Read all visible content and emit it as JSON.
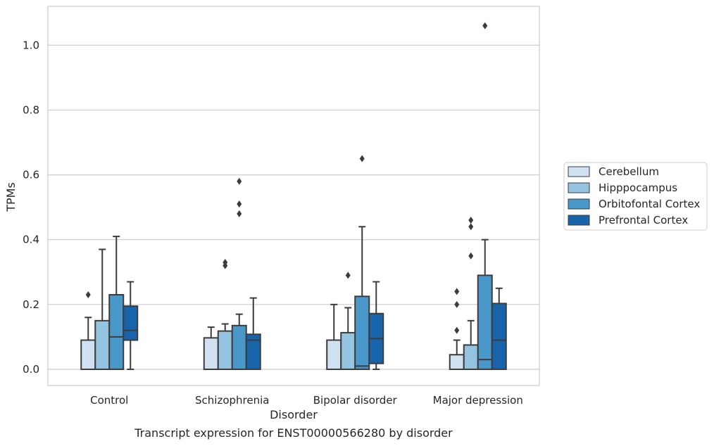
{
  "caption": "Transcript expression for ENST00000566280 by disorder",
  "chart_data": {
    "type": "box",
    "title": "",
    "xlabel": "Disorder",
    "ylabel": "TPMs",
    "ylim": [
      -0.05,
      1.12
    ],
    "yticks": [
      0.0,
      0.2,
      0.4,
      0.6,
      0.8,
      1.0
    ],
    "ytick_labels": [
      "0.0",
      "0.2",
      "0.4",
      "0.6",
      "0.8",
      "1.0"
    ],
    "grid": true,
    "legend_position": "right",
    "categories": [
      "Control",
      "Schizophrenia",
      "Bipolar disorder",
      "Major depression"
    ],
    "series": [
      {
        "name": "Cerebellum",
        "color": "#d0e1f2",
        "boxes": [
          {
            "whisker_low": 0.0,
            "q1": 0.0,
            "median": 0.0,
            "q3": 0.09,
            "whisker_high": 0.16,
            "outliers": [
              0.23
            ]
          },
          {
            "whisker_low": 0.0,
            "q1": 0.0,
            "median": 0.0,
            "q3": 0.097,
            "whisker_high": 0.13,
            "outliers": []
          },
          {
            "whisker_low": 0.0,
            "q1": 0.0,
            "median": 0.0,
            "q3": 0.09,
            "whisker_high": 0.2,
            "outliers": []
          },
          {
            "whisker_low": 0.0,
            "q1": 0.0,
            "median": 0.0,
            "q3": 0.045,
            "whisker_high": 0.09,
            "outliers": [
              0.12,
              0.2,
              0.24
            ]
          }
        ]
      },
      {
        "name": "Hipppocampus",
        "color": "#94c4df",
        "boxes": [
          {
            "whisker_low": 0.0,
            "q1": 0.0,
            "median": 0.0,
            "q3": 0.15,
            "whisker_high": 0.37,
            "outliers": []
          },
          {
            "whisker_low": 0.0,
            "q1": 0.0,
            "median": 0.0,
            "q3": 0.118,
            "whisker_high": 0.14,
            "outliers": [
              0.32,
              0.33
            ]
          },
          {
            "whisker_low": 0.0,
            "q1": 0.0,
            "median": 0.0,
            "q3": 0.113,
            "whisker_high": 0.19,
            "outliers": [
              0.29
            ]
          },
          {
            "whisker_low": 0.0,
            "q1": 0.0,
            "median": 0.0,
            "q3": 0.075,
            "whisker_high": 0.15,
            "outliers": [
              0.35,
              0.44,
              0.46
            ]
          }
        ]
      },
      {
        "name": "Orbitofontal Cortex",
        "color": "#4a98c9",
        "boxes": [
          {
            "whisker_low": 0.0,
            "q1": 0.0,
            "median": 0.1,
            "q3": 0.23,
            "whisker_high": 0.41,
            "outliers": []
          },
          {
            "whisker_low": 0.0,
            "q1": 0.0,
            "median": 0.0,
            "q3": 0.135,
            "whisker_high": 0.17,
            "outliers": [
              0.48,
              0.51,
              0.58
            ]
          },
          {
            "whisker_low": 0.0,
            "q1": 0.0,
            "median": 0.01,
            "q3": 0.225,
            "whisker_high": 0.44,
            "outliers": [
              0.65
            ]
          },
          {
            "whisker_low": 0.0,
            "q1": 0.0,
            "median": 0.03,
            "q3": 0.29,
            "whisker_high": 0.4,
            "outliers": [
              1.06
            ]
          }
        ]
      },
      {
        "name": "Prefrontal Cortex",
        "color": "#1764ab",
        "boxes": [
          {
            "whisker_low": 0.0,
            "q1": 0.09,
            "median": 0.12,
            "q3": 0.195,
            "whisker_high": 0.27,
            "outliers": []
          },
          {
            "whisker_low": 0.0,
            "q1": 0.0,
            "median": 0.09,
            "q3": 0.108,
            "whisker_high": 0.22,
            "outliers": []
          },
          {
            "whisker_low": 0.0,
            "q1": 0.018,
            "median": 0.095,
            "q3": 0.172,
            "whisker_high": 0.27,
            "outliers": []
          },
          {
            "whisker_low": 0.0,
            "q1": 0.0,
            "median": 0.09,
            "q3": 0.203,
            "whisker_high": 0.25,
            "outliers": []
          }
        ]
      }
    ]
  }
}
